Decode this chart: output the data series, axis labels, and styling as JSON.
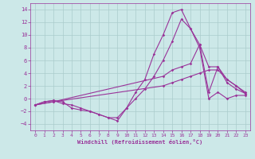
{
  "background_color": "#cce8e8",
  "grid_color": "#aacccc",
  "line_color": "#993399",
  "xlabel": "Windchill (Refroidissement éolien,°C)",
  "xlim": [
    -0.5,
    23.5
  ],
  "ylim": [
    -5,
    15
  ],
  "yticks": [
    -4,
    -2,
    0,
    2,
    4,
    6,
    8,
    10,
    12,
    14
  ],
  "xticks": [
    0,
    1,
    2,
    3,
    4,
    5,
    6,
    7,
    8,
    9,
    10,
    11,
    12,
    13,
    14,
    15,
    16,
    17,
    18,
    19,
    20,
    21,
    22,
    23
  ],
  "lines": [
    {
      "x": [
        0,
        1,
        2,
        3,
        4,
        5,
        6,
        7,
        8,
        9,
        10,
        11,
        12,
        13,
        14,
        15,
        16,
        17,
        18,
        19,
        20,
        21,
        22,
        23
      ],
      "y": [
        -1,
        -0.5,
        -0.3,
        -0.5,
        -1.5,
        -1.8,
        -2,
        -2.5,
        -3,
        -3.5,
        -1.5,
        1,
        3,
        7,
        10,
        13.5,
        14,
        11,
        8.5,
        1,
        5,
        3,
        2,
        1
      ]
    },
    {
      "x": [
        0,
        1,
        2,
        3,
        4,
        5,
        6,
        7,
        8,
        9,
        10,
        11,
        12,
        13,
        14,
        15,
        16,
        17,
        18,
        19,
        20,
        21,
        22,
        23
      ],
      "y": [
        -1,
        -0.5,
        -0.3,
        -0.8,
        -1,
        -1.5,
        -2,
        -2.5,
        -3,
        -3,
        -1.5,
        0,
        1.5,
        3.5,
        6,
        9,
        12.5,
        11,
        8,
        0,
        1,
        0,
        0.5,
        0.5
      ]
    },
    {
      "x": [
        0,
        2,
        14,
        15,
        16,
        17,
        18,
        19,
        20,
        21,
        22,
        23
      ],
      "y": [
        -1,
        -0.5,
        3.5,
        4.5,
        5,
        5.5,
        8.5,
        5,
        5,
        2.5,
        1.5,
        0.8
      ]
    },
    {
      "x": [
        0,
        2,
        14,
        15,
        16,
        17,
        18,
        19,
        20,
        21,
        22,
        23
      ],
      "y": [
        -1,
        -0.5,
        2,
        2.5,
        3,
        3.5,
        4,
        4.5,
        4.5,
        3,
        2,
        0.8
      ]
    }
  ]
}
